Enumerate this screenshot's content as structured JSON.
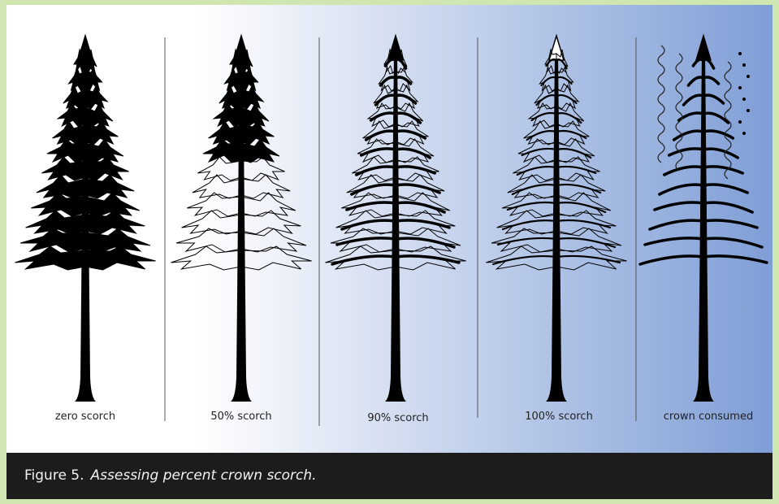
{
  "panels": [
    {
      "label": "zero scorch"
    },
    {
      "label": "50% scorch"
    },
    {
      "label": "90% scorch"
    },
    {
      "label": "100% scorch"
    },
    {
      "label": "crown consumed"
    }
  ],
  "caption": {
    "number": "Figure 5.",
    "text": "Assessing percent crown scorch."
  }
}
